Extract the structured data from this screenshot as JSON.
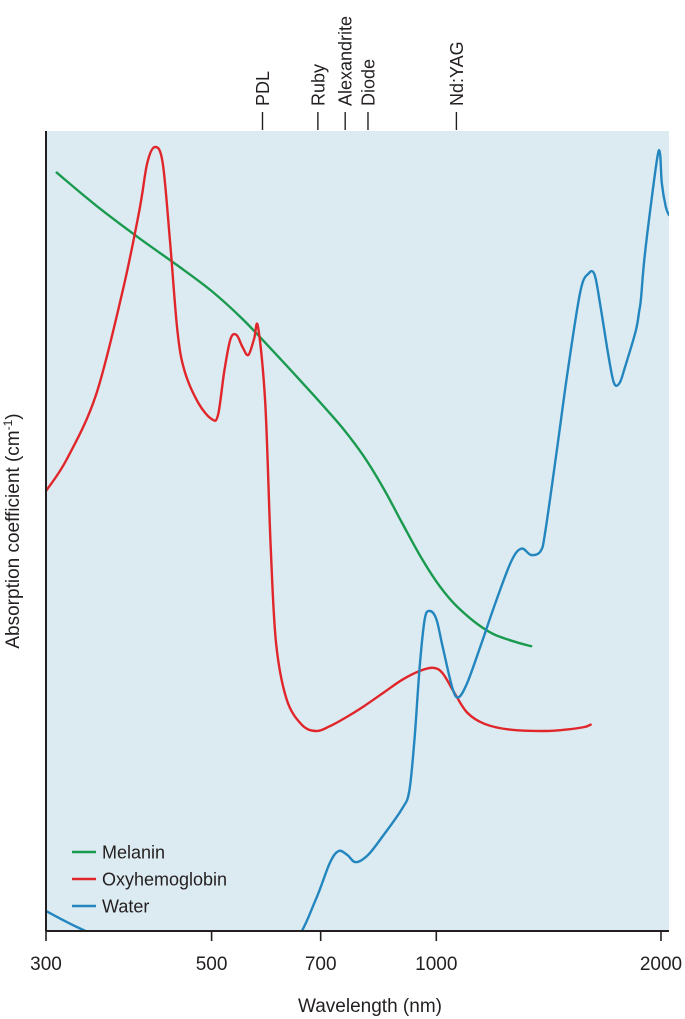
{
  "chart_data": {
    "type": "line",
    "xlabel": "Wavelength (nm)",
    "ylabel": {
      "main": "Absorption coefficient (cm",
      "sup": "-1",
      "close": ")"
    },
    "x_scale": "log",
    "xlim": [
      300,
      2050
    ],
    "x_ticks": [
      300,
      500,
      700,
      1000,
      2000
    ],
    "y_scale": "unlabeled",
    "ylim": [
      0,
      100
    ],
    "background": "#dcebf1",
    "legend": {
      "placement": "bottom-left"
    },
    "lasers": [
      {
        "name": "PDL",
        "wavelength": 585
      },
      {
        "name": "Ruby",
        "wavelength": 694
      },
      {
        "name": "Alexandrite",
        "wavelength": 755
      },
      {
        "name": "Diode",
        "wavelength": 810
      },
      {
        "name": "Nd:YAG",
        "wavelength": 1064
      }
    ],
    "series": [
      {
        "name": "Melanin",
        "color": "#1a9a4f",
        "points": [
          [
            310,
            94.8
          ],
          [
            350,
            90.7
          ],
          [
            400,
            86.6
          ],
          [
            450,
            83.2
          ],
          [
            500,
            80.0
          ],
          [
            550,
            76.5
          ],
          [
            600,
            72.8
          ],
          [
            650,
            69.3
          ],
          [
            700,
            66.0
          ],
          [
            750,
            62.8
          ],
          [
            800,
            59.3
          ],
          [
            850,
            55.3
          ],
          [
            900,
            51.0
          ],
          [
            950,
            47.0
          ],
          [
            1000,
            43.7
          ],
          [
            1050,
            41.2
          ],
          [
            1100,
            39.4
          ],
          [
            1150,
            38.0
          ],
          [
            1200,
            37.0
          ],
          [
            1280,
            36.1
          ],
          [
            1340,
            35.6
          ]
        ]
      },
      {
        "name": "Oxyhemoglobin",
        "color": "#e0262a",
        "points": [
          [
            300,
            55.0
          ],
          [
            320,
            59.0
          ],
          [
            350,
            67.0
          ],
          [
            380,
            80.0
          ],
          [
            400,
            90.0
          ],
          [
            410,
            96.0
          ],
          [
            420,
            98.0
          ],
          [
            430,
            96.0
          ],
          [
            440,
            86.0
          ],
          [
            450,
            75.0
          ],
          [
            460,
            70.0
          ],
          [
            480,
            66.0
          ],
          [
            500,
            64.0
          ],
          [
            510,
            64.5
          ],
          [
            520,
            70.0
          ],
          [
            530,
            74.0
          ],
          [
            540,
            74.5
          ],
          [
            550,
            73.0
          ],
          [
            560,
            72.0
          ],
          [
            570,
            74.0
          ],
          [
            577,
            75.5
          ],
          [
            590,
            66.0
          ],
          [
            600,
            48.0
          ],
          [
            610,
            36.0
          ],
          [
            630,
            29.0
          ],
          [
            660,
            25.8
          ],
          [
            690,
            25.0
          ],
          [
            720,
            25.6
          ],
          [
            760,
            26.8
          ],
          [
            800,
            28.1
          ],
          [
            850,
            29.8
          ],
          [
            900,
            31.4
          ],
          [
            950,
            32.5
          ],
          [
            990,
            32.9
          ],
          [
            1020,
            32.2
          ],
          [
            1060,
            29.6
          ],
          [
            1100,
            27.3
          ],
          [
            1160,
            25.9
          ],
          [
            1250,
            25.2
          ],
          [
            1400,
            25.0
          ],
          [
            1500,
            25.2
          ],
          [
            1580,
            25.5
          ],
          [
            1610,
            25.8
          ]
        ]
      },
      {
        "name": "Water",
        "color": "#2386bf",
        "points": [
          [
            300,
            2.5
          ],
          [
            330,
            0.5
          ],
          [
            370,
            -1.5
          ],
          [
            420,
            -3.0
          ],
          [
            500,
            -4.0
          ],
          [
            600,
            -3.0
          ],
          [
            650,
            -1.0
          ],
          [
            690,
            4.0
          ],
          [
            720,
            8.5
          ],
          [
            740,
            10.0
          ],
          [
            760,
            9.5
          ],
          [
            780,
            8.6
          ],
          [
            810,
            9.5
          ],
          [
            850,
            12.0
          ],
          [
            900,
            15.3
          ],
          [
            920,
            17.5
          ],
          [
            935,
            24.0
          ],
          [
            950,
            33.0
          ],
          [
            965,
            39.0
          ],
          [
            980,
            40.0
          ],
          [
            1000,
            39.0
          ],
          [
            1020,
            35.5
          ],
          [
            1050,
            30.5
          ],
          [
            1070,
            29.2
          ],
          [
            1100,
            31.0
          ],
          [
            1150,
            36.0
          ],
          [
            1200,
            41.0
          ],
          [
            1260,
            46.2
          ],
          [
            1300,
            47.8
          ],
          [
            1340,
            47.0
          ],
          [
            1380,
            47.5
          ],
          [
            1400,
            50.0
          ],
          [
            1450,
            60.0
          ],
          [
            1500,
            70.0
          ],
          [
            1560,
            80.0
          ],
          [
            1600,
            82.2
          ],
          [
            1630,
            82.0
          ],
          [
            1660,
            78.0
          ],
          [
            1700,
            72.0
          ],
          [
            1730,
            68.5
          ],
          [
            1760,
            68.5
          ],
          [
            1790,
            70.5
          ],
          [
            1850,
            75.0
          ],
          [
            1870,
            77.5
          ],
          [
            1880,
            79.0
          ],
          [
            1900,
            84.0
          ],
          [
            1940,
            91.0
          ],
          [
            1980,
            97.0
          ],
          [
            1995,
            97.0
          ],
          [
            2005,
            93.5
          ],
          [
            2030,
            90.5
          ],
          [
            2050,
            89.5
          ]
        ]
      }
    ]
  }
}
